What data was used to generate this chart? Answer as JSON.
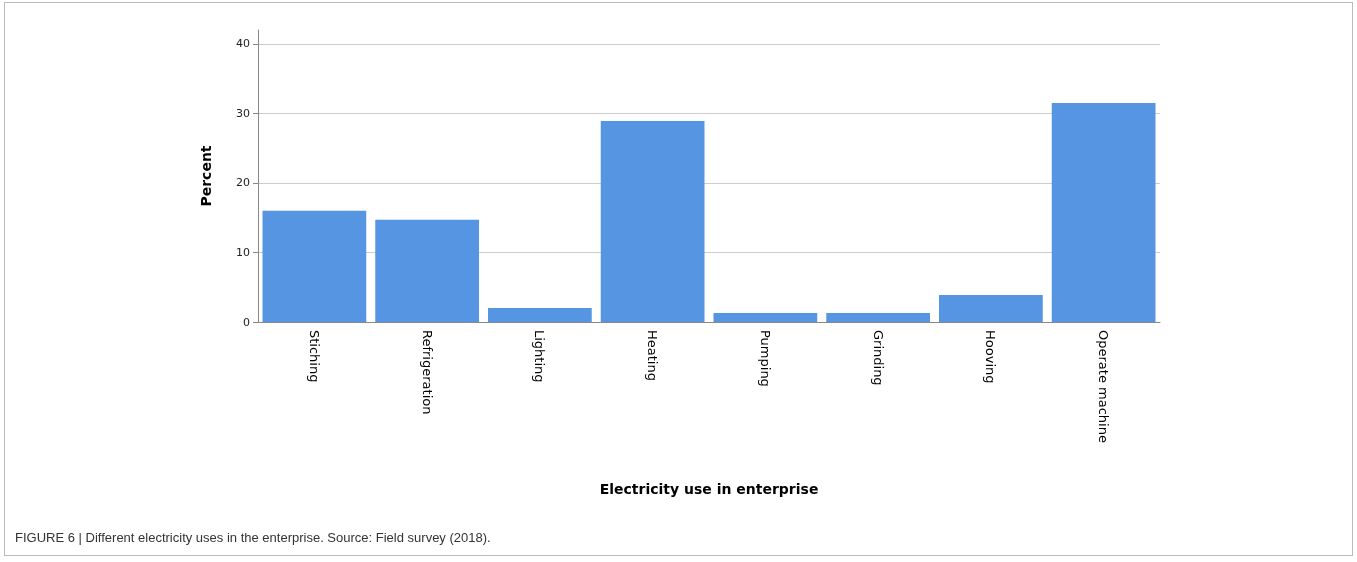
{
  "chart_data": {
    "type": "bar",
    "xlabel": "Electricity use in enterprise",
    "ylabel": "Percent",
    "categories": [
      "Stiching",
      "Refrigeration",
      "Lighting",
      "Heating",
      "Pumping",
      "Grinding",
      "Hooving",
      "Operate machine"
    ],
    "values": [
      16.0,
      14.7,
      2.0,
      28.9,
      1.3,
      1.3,
      3.9,
      31.5
    ],
    "color": "#5595e2",
    "ylim": [
      0,
      42
    ],
    "yticks": [
      0,
      10,
      20,
      30,
      40
    ],
    "grid": "y",
    "annotations": [
      "FIGURE 6 | Different electricity uses in the enterprise. Source: Field survey (2018)."
    ]
  }
}
